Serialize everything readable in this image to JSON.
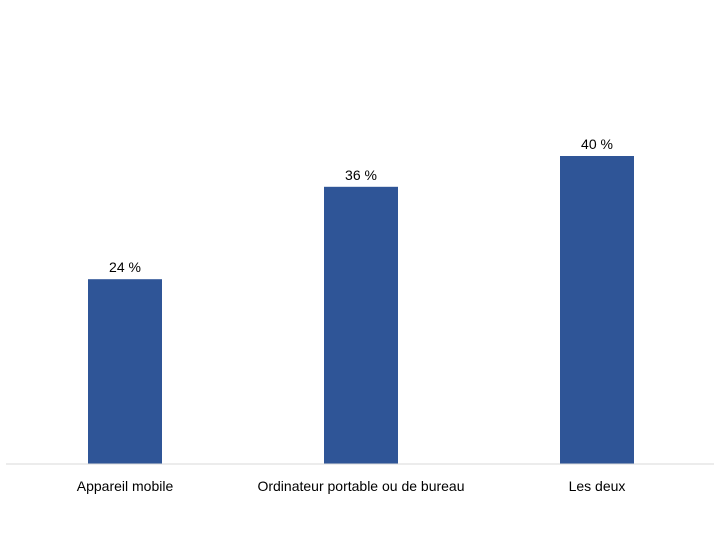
{
  "chart_data": {
    "type": "bar",
    "categories": [
      "Appareil mobile",
      "Ordinateur portable ou de bureau",
      "Les deux"
    ],
    "values": [
      24,
      36,
      40
    ],
    "data_labels": [
      "24 %",
      "36 %",
      "40 %"
    ],
    "title": "",
    "xlabel": "",
    "ylabel": "",
    "ylim": [
      0,
      40
    ],
    "grid": false,
    "legend": "none",
    "colors": {
      "bar": "#2F5597",
      "axis": "#D9D9D9"
    }
  }
}
